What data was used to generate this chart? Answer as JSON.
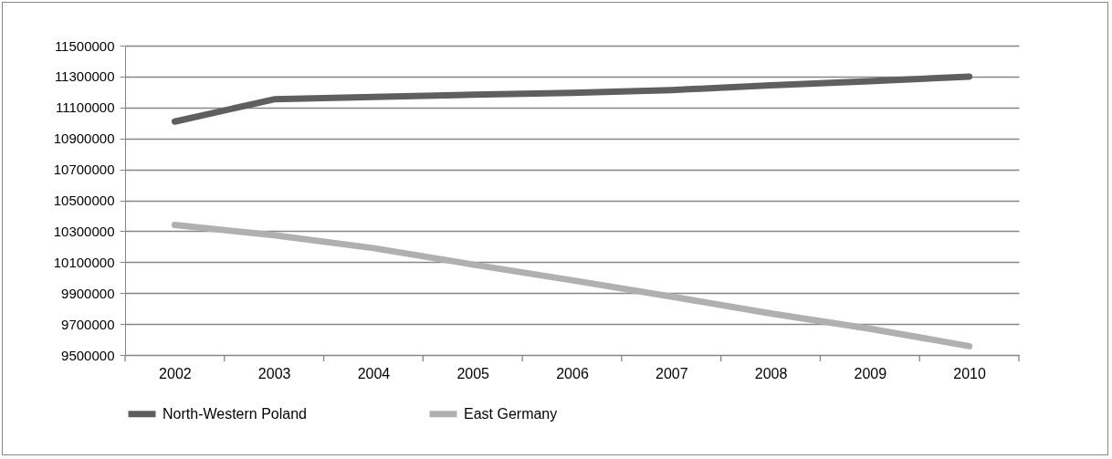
{
  "chart_data": {
    "type": "line",
    "categories": [
      "2002",
      "2003",
      "2004",
      "2005",
      "2006",
      "2007",
      "2008",
      "2009",
      "2010"
    ],
    "series": [
      {
        "name": "North-Western Poland",
        "color": "#5f5f5f",
        "values": [
          11009000,
          11153000,
          11168000,
          11183000,
          11194000,
          11213000,
          11243000,
          11270000,
          11300000
        ]
      },
      {
        "name": "East Germany",
        "color": "#b0b0b0",
        "values": [
          10341000,
          10274000,
          10191000,
          10085000,
          9983000,
          9878000,
          9768000,
          9670000,
          9557000
        ]
      }
    ],
    "ylim": [
      9500000,
      11500000
    ],
    "yticks": [
      9500000,
      9700000,
      9900000,
      10100000,
      10300000,
      10500000,
      10700000,
      10900000,
      11100000,
      11300000,
      11500000
    ],
    "grid": "y",
    "legend": "bottom",
    "marker": "none",
    "line_style": "solid"
  }
}
